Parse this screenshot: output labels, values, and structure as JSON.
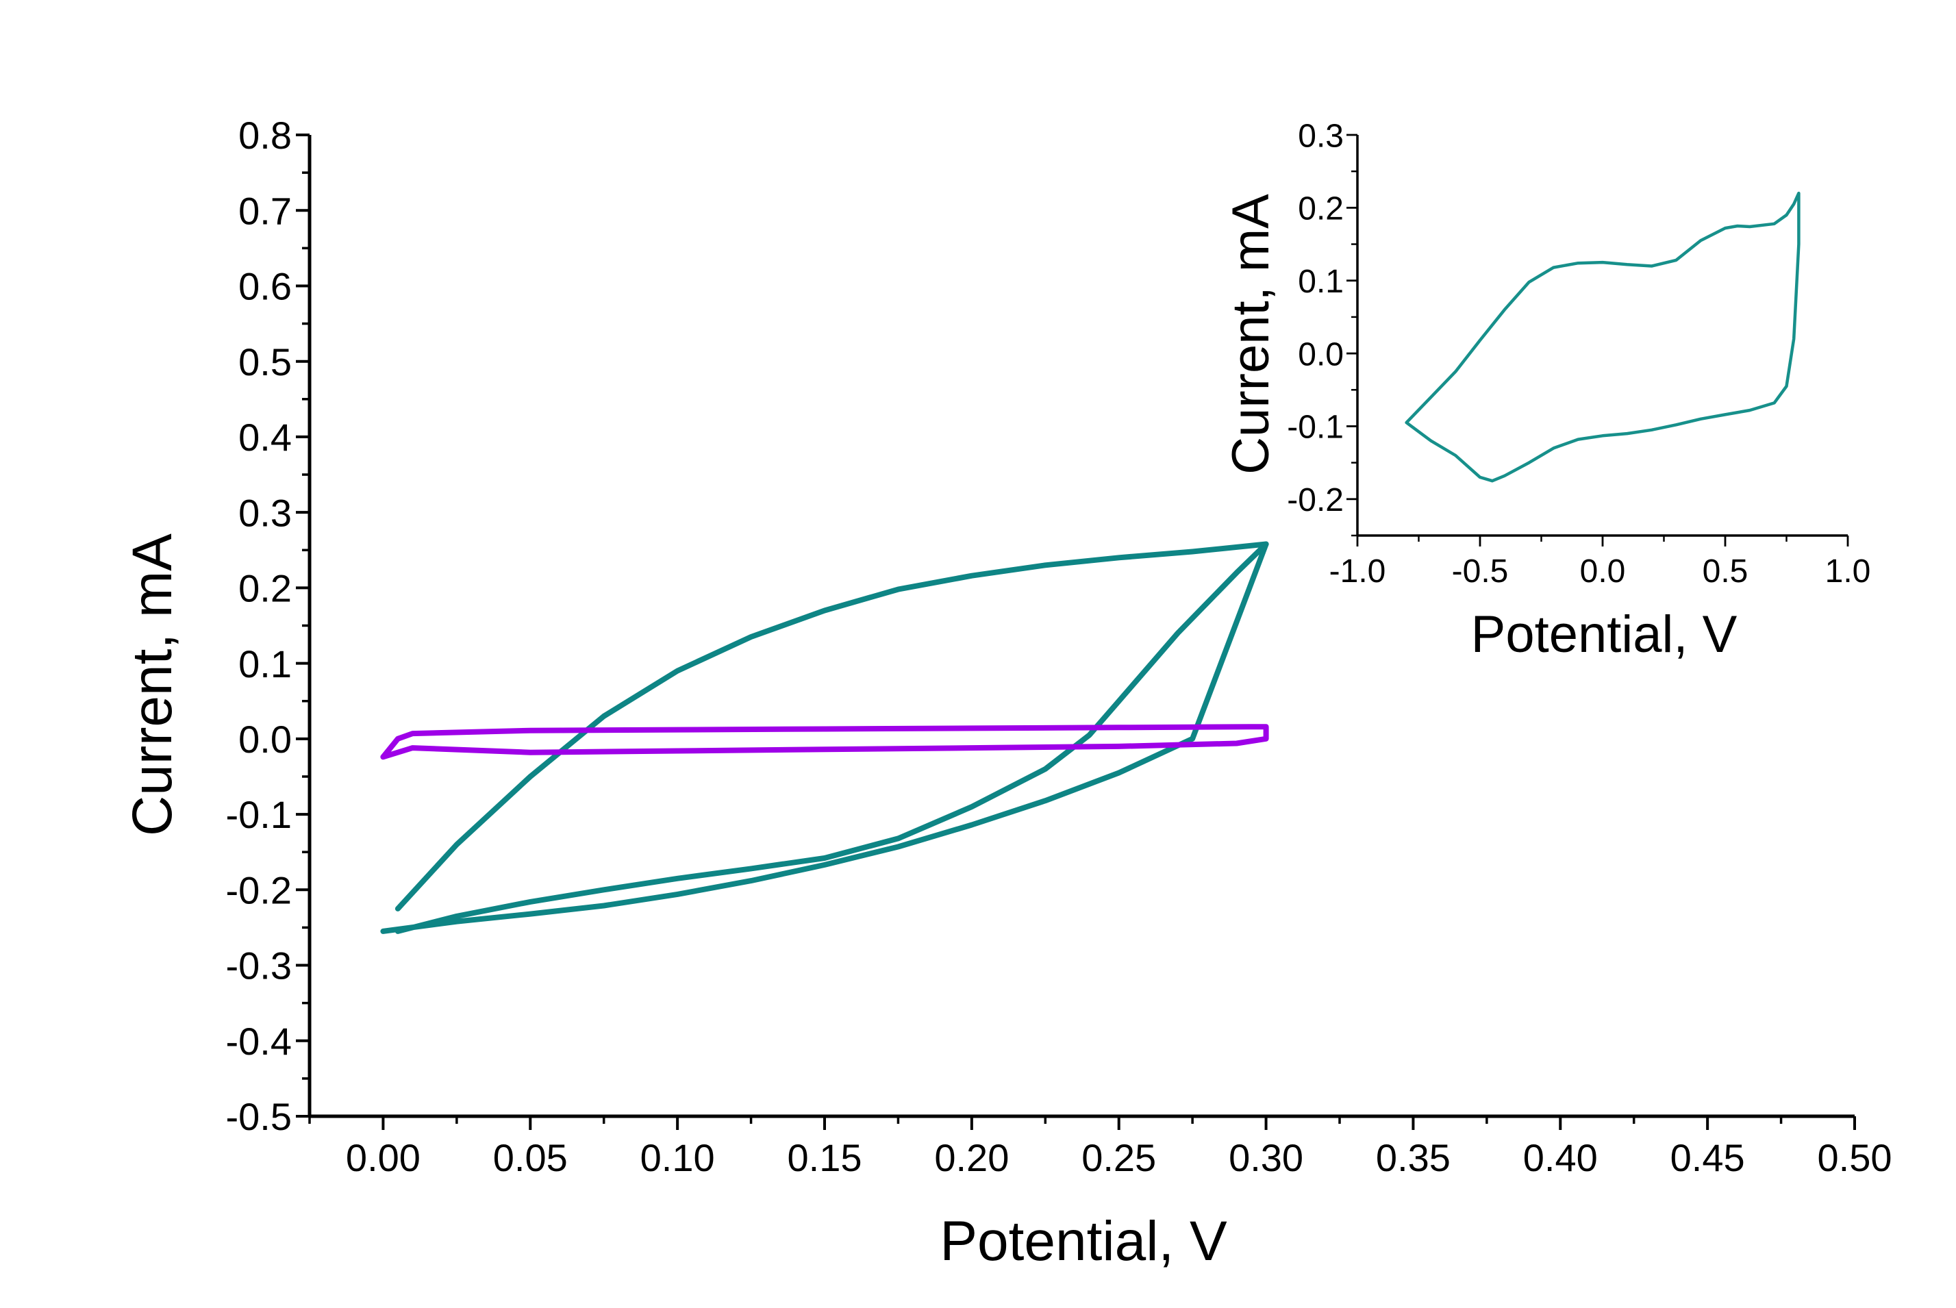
{
  "chart_data": [
    {
      "id": "main",
      "type": "line",
      "title": "",
      "xlabel": "Potential, V",
      "ylabel": "Current, mA",
      "xlim": [
        -0.025,
        0.5
      ],
      "ylim": [
        -0.5,
        0.8
      ],
      "xticks": [
        0.0,
        0.05,
        0.1,
        0.15,
        0.2,
        0.25,
        0.3,
        0.35,
        0.4,
        0.45,
        0.5
      ],
      "xtick_labels": [
        "0.00",
        "0.05",
        "0.10",
        "0.15",
        "0.20",
        "0.25",
        "0.30",
        "0.35",
        "0.40",
        "0.45",
        "0.50"
      ],
      "yticks": [
        -0.5,
        -0.4,
        -0.3,
        -0.2,
        -0.1,
        0.0,
        0.1,
        0.2,
        0.3,
        0.4,
        0.5,
        0.6,
        0.7,
        0.8
      ],
      "ytick_labels": [
        "-0.5",
        "-0.4",
        "-0.3",
        "-0.2",
        "-0.1",
        "0.0",
        "0.1",
        "0.2",
        "0.3",
        "0.4",
        "0.5",
        "0.6",
        "0.7",
        "0.8"
      ],
      "grid": false,
      "legend": "none",
      "series": [
        {
          "name": "teal-cv",
          "color": "#0e8585",
          "x": [
            0.0,
            0.025,
            0.05,
            0.075,
            0.1,
            0.125,
            0.15,
            0.175,
            0.2,
            0.225,
            0.25,
            0.275,
            0.3,
            0.3,
            0.29,
            0.28,
            0.27,
            0.26,
            0.25,
            0.24,
            0.225,
            0.2,
            0.175,
            0.15,
            0.125,
            0.1,
            0.075,
            0.05,
            0.025,
            0.01,
            0.005
          ],
          "y": [
            -0.255,
            -0.242,
            -0.232,
            -0.221,
            -0.206,
            -0.188,
            -0.167,
            -0.143,
            -0.114,
            -0.082,
            -0.045,
            0.0,
            0.258,
            0.258,
            0.22,
            0.18,
            0.14,
            0.095,
            0.05,
            0.005,
            -0.04,
            -0.09,
            -0.132,
            -0.158,
            -0.172,
            -0.185,
            -0.2,
            -0.216,
            -0.235,
            -0.25,
            -0.255
          ]
        },
        {
          "name": "teal-cv-return",
          "color": "#0e8585",
          "x": [
            0.005,
            0.025,
            0.05,
            0.075,
            0.1,
            0.125,
            0.15,
            0.175,
            0.2,
            0.225,
            0.25,
            0.275,
            0.3
          ],
          "y": [
            -0.225,
            -0.14,
            -0.05,
            0.03,
            0.09,
            0.135,
            0.17,
            0.198,
            0.216,
            0.23,
            0.24,
            0.248,
            0.258
          ]
        },
        {
          "name": "purple-cv",
          "color": "#9e00e8",
          "x": [
            0.0,
            0.005,
            0.01,
            0.05,
            0.1,
            0.15,
            0.2,
            0.25,
            0.29,
            0.3,
            0.3,
            0.295,
            0.25,
            0.2,
            0.15,
            0.1,
            0.05,
            0.01,
            0.005,
            0.0
          ],
          "y": [
            -0.024,
            -0.018,
            -0.012,
            -0.018,
            -0.016,
            -0.014,
            -0.012,
            -0.01,
            -0.006,
            0.0,
            0.016,
            0.016,
            0.015,
            0.014,
            0.013,
            0.012,
            0.011,
            0.007,
            0.0,
            -0.024
          ]
        }
      ]
    },
    {
      "id": "inset",
      "type": "line",
      "title": "",
      "xlabel": "Potential, V",
      "ylabel": "Current, mA",
      "xlim": [
        -1.0,
        1.0
      ],
      "ylim": [
        -0.25,
        0.3
      ],
      "xticks": [
        -1.0,
        -0.5,
        0.0,
        0.5,
        1.0
      ],
      "xtick_labels": [
        "-1.0",
        "-0.5",
        "0.0",
        "0.5",
        "1.0"
      ],
      "yticks": [
        -0.2,
        -0.1,
        0.0,
        0.1,
        0.2,
        0.3
      ],
      "ytick_labels": [
        "-0.2",
        "-0.1",
        "0.0",
        "0.1",
        "0.2",
        "0.3"
      ],
      "grid": false,
      "legend": "none",
      "series": [
        {
          "name": "inset-cv",
          "color": "#17908b",
          "x": [
            -0.8,
            -0.7,
            -0.6,
            -0.5,
            -0.4,
            -0.3,
            -0.2,
            -0.1,
            0.0,
            0.1,
            0.2,
            0.3,
            0.4,
            0.5,
            0.55,
            0.6,
            0.7,
            0.75,
            0.78,
            0.8,
            0.8,
            0.78,
            0.75,
            0.7,
            0.6,
            0.5,
            0.4,
            0.3,
            0.2,
            0.1,
            0.0,
            -0.1,
            -0.2,
            -0.3,
            -0.4,
            -0.45,
            -0.5,
            -0.6,
            -0.7,
            -0.8
          ],
          "y": [
            -0.095,
            -0.06,
            -0.025,
            0.018,
            0.06,
            0.098,
            0.118,
            0.124,
            0.125,
            0.122,
            0.12,
            0.128,
            0.155,
            0.172,
            0.175,
            0.174,
            0.178,
            0.19,
            0.205,
            0.22,
            0.15,
            0.02,
            -0.045,
            -0.068,
            -0.078,
            -0.084,
            -0.09,
            -0.098,
            -0.105,
            -0.11,
            -0.113,
            -0.118,
            -0.13,
            -0.15,
            -0.168,
            -0.175,
            -0.17,
            -0.14,
            -0.12,
            -0.095
          ]
        }
      ]
    }
  ]
}
